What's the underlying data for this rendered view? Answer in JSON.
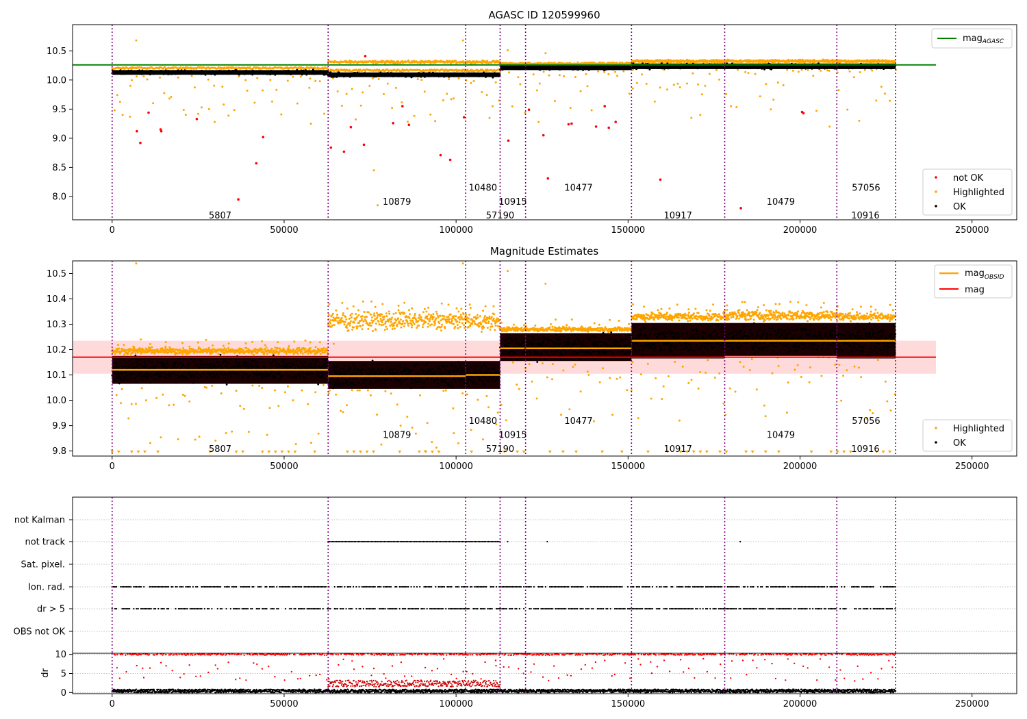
{
  "chart_data": [
    {
      "type": "scatter",
      "title": "AGASC ID 120599960",
      "xlim": [
        -11500,
        263000
      ],
      "ylim": [
        7.6,
        10.95
      ],
      "xticks": [
        "0",
        "50000",
        "100000",
        "150000",
        "200000",
        "250000"
      ],
      "xtick_values": [
        0,
        50000,
        100000,
        150000,
        200000,
        250000
      ],
      "yticks": [
        "8.0",
        "8.5",
        "9.0",
        "9.5",
        "10.0",
        "10.5"
      ],
      "ytick_values": [
        8.0,
        8.5,
        9.0,
        9.5,
        10.0,
        10.5
      ],
      "obs_boundaries": [
        0,
        62800,
        102800,
        112800,
        120200,
        151000,
        178100,
        210700,
        227800
      ],
      "obsid_labels": [
        {
          "text": "5807",
          "x": 31400,
          "y": 7.68
        },
        {
          "text": "10879",
          "x": 82800,
          "y": 7.92
        },
        {
          "text": "10480",
          "x": 107800,
          "y": 8.16
        },
        {
          "text": "57190",
          "x": 112800,
          "y": 7.68
        },
        {
          "text": "10915",
          "x": 116500,
          "y": 7.92
        },
        {
          "text": "10477",
          "x": 135600,
          "y": 8.16
        },
        {
          "text": "10917",
          "x": 164500,
          "y": 7.68
        },
        {
          "text": "10479",
          "x": 194400,
          "y": 7.92
        },
        {
          "text": "57056",
          "x": 219200,
          "y": 8.16
        },
        {
          "text": "10916",
          "x": 219000,
          "y": 7.68
        }
      ],
      "mag_agasc": 10.26,
      "ok_segments": [
        {
          "x0": 0,
          "x1": 62800,
          "center": 10.13,
          "half": 0.05
        },
        {
          "x0": 62800,
          "x1": 112800,
          "center": 10.09,
          "half": 0.05
        },
        {
          "x0": 112800,
          "x1": 151000,
          "center": 10.21,
          "half": 0.05
        },
        {
          "x0": 151000,
          "x1": 227800,
          "center": 10.235,
          "half": 0.06
        }
      ],
      "highlighted_bands": [
        {
          "x0": 62800,
          "x1": 112800,
          "center": 10.31,
          "half": 0.03
        },
        {
          "x0": 112800,
          "x1": 151000,
          "center": 10.27,
          "half": 0.02
        },
        {
          "x0": 151000,
          "x1": 227800,
          "center": 10.325,
          "half": 0.03
        }
      ],
      "not_ok_points": [
        [
          7200,
          9.12
        ],
        [
          8200,
          8.92
        ],
        [
          10600,
          9.44
        ],
        [
          14100,
          9.15
        ],
        [
          14300,
          9.12
        ],
        [
          24600,
          9.33
        ],
        [
          36700,
          7.95
        ],
        [
          41900,
          8.57
        ],
        [
          43900,
          9.02
        ],
        [
          63600,
          8.84
        ],
        [
          67400,
          8.77
        ],
        [
          69400,
          9.19
        ],
        [
          73200,
          8.89
        ],
        [
          73600,
          10.41
        ],
        [
          81700,
          9.26
        ],
        [
          84400,
          9.55
        ],
        [
          86300,
          9.23
        ],
        [
          95500,
          8.71
        ],
        [
          98300,
          8.63
        ],
        [
          102300,
          9.36
        ],
        [
          115200,
          8.96
        ],
        [
          121200,
          9.49
        ],
        [
          125400,
          9.05
        ],
        [
          126700,
          8.31
        ],
        [
          132700,
          9.24
        ],
        [
          133600,
          9.25
        ],
        [
          140700,
          9.2
        ],
        [
          143200,
          9.55
        ],
        [
          144400,
          9.18
        ],
        [
          146400,
          9.28
        ],
        [
          159400,
          8.29
        ],
        [
          182800,
          7.8
        ],
        [
          200600,
          9.45
        ],
        [
          201000,
          9.43
        ]
      ],
      "highlighted_outliers": [
        [
          7000,
          10.68
        ],
        [
          102000,
          10.68
        ],
        [
          115000,
          10.51
        ],
        [
          126000,
          10.46
        ],
        [
          77200,
          7.85
        ],
        [
          76100,
          8.45
        ],
        [
          1500,
          9.74
        ],
        [
          5200,
          9.37
        ],
        [
          25000,
          9.42
        ],
        [
          57800,
          9.25
        ],
        [
          29800,
          9.28
        ],
        [
          98600,
          9.67
        ],
        [
          110600,
          9.55
        ],
        [
          124000,
          9.28
        ],
        [
          168400,
          9.35
        ],
        [
          171000,
          9.4
        ],
        [
          208600,
          9.2
        ],
        [
          217200,
          9.3
        ]
      ],
      "legend_upper": [
        "mag$_{AGASC}$"
      ],
      "legend_lower": [
        "not OK",
        "Highlighted",
        "OK"
      ],
      "colors": {
        "ok": "#000000",
        "highlighted": "#ffa500",
        "not_ok": "#ff0000",
        "agasc": "#008000",
        "boundary": "#800080"
      }
    },
    {
      "type": "scatter",
      "title": "Magnitude Estimates",
      "xlim": [
        -11500,
        263000
      ],
      "ylim": [
        9.78,
        10.55
      ],
      "xticks": [
        "0",
        "50000",
        "100000",
        "150000",
        "200000",
        "250000"
      ],
      "xtick_values": [
        0,
        50000,
        100000,
        150000,
        200000,
        250000
      ],
      "yticks": [
        "9.8",
        "9.9",
        "10.0",
        "10.1",
        "10.2",
        "10.3",
        "10.4",
        "10.5"
      ],
      "ytick_values": [
        9.8,
        9.9,
        10.0,
        10.1,
        10.2,
        10.3,
        10.4,
        10.5
      ],
      "mag": 10.17,
      "mag_band": [
        10.105,
        10.235
      ],
      "obsid_segments": [
        {
          "x0": 0,
          "x1": 62800,
          "ok_lo": 10.06,
          "ok_hi": 10.18,
          "mean": 10.12,
          "hl_lo": 10.18,
          "hl_hi": 10.21
        },
        {
          "x0": 62800,
          "x1": 102800,
          "ok_lo": 10.04,
          "ok_hi": 10.16,
          "mean": 10.095,
          "hl_lo": 10.27,
          "hl_hi": 10.36
        },
        {
          "x0": 102800,
          "x1": 112800,
          "ok_lo": 10.04,
          "ok_hi": 10.16,
          "mean": 10.1,
          "hl_lo": 10.27,
          "hl_hi": 10.35
        },
        {
          "x0": 112800,
          "x1": 120200,
          "ok_lo": 10.15,
          "ok_hi": 10.27,
          "mean": 10.205,
          "hl_lo": 10.27,
          "hl_hi": 10.29
        },
        {
          "x0": 120200,
          "x1": 151000,
          "ok_lo": 10.15,
          "ok_hi": 10.27,
          "mean": 10.205,
          "hl_lo": 10.27,
          "hl_hi": 10.29
        },
        {
          "x0": 151000,
          "x1": 178100,
          "ok_lo": 10.16,
          "ok_hi": 10.31,
          "mean": 10.235,
          "hl_lo": 10.31,
          "hl_hi": 10.35
        },
        {
          "x0": 178100,
          "x1": 210700,
          "ok_lo": 10.17,
          "ok_hi": 10.31,
          "mean": 10.235,
          "hl_lo": 10.31,
          "hl_hi": 10.36
        },
        {
          "x0": 210700,
          "x1": 227800,
          "ok_lo": 10.16,
          "ok_hi": 10.31,
          "mean": 10.235,
          "hl_lo": 10.31,
          "hl_hi": 10.35
        }
      ],
      "obsid_labels": [
        {
          "text": "5807",
          "x": 31400,
          "y": 9.81
        },
        {
          "text": "10879",
          "x": 82800,
          "y": 9.865
        },
        {
          "text": "10480",
          "x": 107800,
          "y": 9.92
        },
        {
          "text": "57190",
          "x": 112800,
          "y": 9.81
        },
        {
          "text": "10915",
          "x": 116500,
          "y": 9.865
        },
        {
          "text": "10477",
          "x": 135600,
          "y": 9.92
        },
        {
          "text": "10917",
          "x": 164500,
          "y": 9.81
        },
        {
          "text": "10479",
          "x": 194400,
          "y": 9.865
        },
        {
          "text": "57056",
          "x": 219200,
          "y": 9.92
        },
        {
          "text": "10916",
          "x": 219000,
          "y": 9.81
        }
      ],
      "legend_upper": [
        "mag$_{OBSID}$",
        "mag"
      ],
      "legend_lower": [
        "Highlighted",
        "OK"
      ],
      "colors": {
        "ok": "#000000",
        "highlighted": "#ffa500",
        "mag": "#ff0000",
        "mag_band": "#ffdada",
        "mean": "#ffa500"
      }
    },
    {
      "type": "scatter",
      "xlim": [
        -11500,
        263000
      ],
      "flag_labels": [
        "not Kalman",
        "not track",
        "Sat. pixel.",
        "Ion. rad.",
        "dr > 5",
        "OBS not OK"
      ],
      "flag_rows": [
        {
          "label": "not Kalman",
          "spans": []
        },
        {
          "label": "not track",
          "spans": [
            [
              62800,
              112800
            ],
            [
              115000,
              115000
            ],
            [
              126500,
              126500
            ],
            [
              182600,
              182600
            ]
          ]
        },
        {
          "label": "Sat. pixel.",
          "spans": []
        },
        {
          "label": "Ion. rad.",
          "spans": [
            [
              0,
              227800
            ]
          ]
        },
        {
          "label": "dr > 5",
          "spans": [
            [
              0,
              227800
            ]
          ]
        },
        {
          "label": "OBS not OK",
          "spans": []
        }
      ]
    },
    {
      "type": "scatter",
      "xlim": [
        -11500,
        263000
      ],
      "ylim": [
        -0.3,
        10.3
      ],
      "ylabel": "dr",
      "yticks": [
        "0",
        "5",
        "10"
      ],
      "ytick_values": [
        0,
        5,
        10
      ],
      "xticks": [
        "0",
        "50000",
        "100000",
        "150000",
        "200000",
        "250000"
      ],
      "xtick_values": [
        0,
        50000,
        100000,
        150000,
        200000,
        250000
      ],
      "ok_level": 0.6,
      "capped_level": 9.8,
      "mid_band": {
        "x0": 62800,
        "x1": 112800,
        "lo": 1.5,
        "hi": 3.2
      }
    }
  ]
}
